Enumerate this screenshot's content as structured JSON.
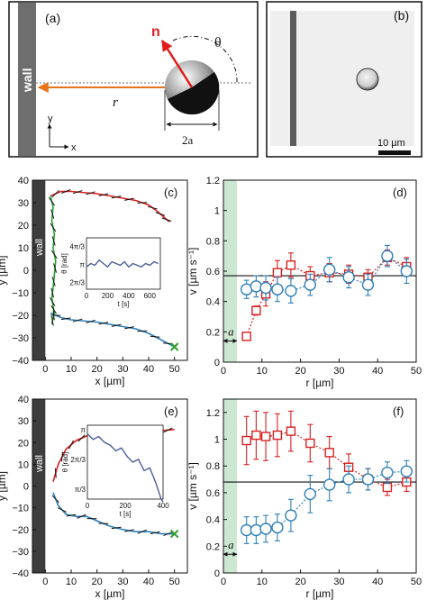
{
  "panel_a": {
    "label": "(a)",
    "wall_label": "wall",
    "n_label": "n",
    "theta_label": "θ",
    "r_label": "r",
    "two_a_label": "2a",
    "y_label": "y",
    "x_label": "x",
    "colors": {
      "arrow_r": "#e8741a",
      "arrow_n": "#e11b1b"
    }
  },
  "panel_b": {
    "label": "(b)",
    "scalebar_label": "10 µm"
  },
  "chart_data": [
    {
      "id": "c",
      "type": "line",
      "label": "(c)",
      "xlabel": "x [µm]",
      "ylabel": "y [µm]",
      "wall_label": "wall",
      "xlim": [
        -5,
        55
      ],
      "ylim": [
        -40,
        40
      ],
      "xticks": [
        "0",
        "10",
        "20",
        "30",
        "40",
        "50"
      ],
      "yticks": [
        "−40",
        "−30",
        "−20",
        "−10",
        "0",
        "10",
        "20",
        "30",
        "40"
      ],
      "series": [
        {
          "color": "#d62020",
          "x": [
            2,
            6,
            10,
            15,
            20,
            25,
            30,
            35,
            40,
            43,
            46,
            48
          ],
          "y": [
            33,
            35,
            35,
            34.5,
            34,
            33,
            32,
            31,
            29,
            26.5,
            23.5,
            21.5
          ]
        },
        {
          "color": "#2e7fb8",
          "x": [
            2,
            6,
            10,
            15,
            20,
            25,
            30,
            35,
            40,
            45,
            50
          ],
          "y": [
            -19,
            -21,
            -22,
            -22.5,
            -23,
            -24,
            -25,
            -26,
            -28,
            -31,
            -34
          ]
        },
        {
          "color": "#2aa02a",
          "x": [
            2,
            3,
            2.5,
            3.5,
            3,
            4,
            3.5,
            3,
            2.5,
            3,
            3.5,
            3,
            2.5
          ],
          "y": [
            33,
            28,
            22,
            16,
            10,
            4,
            -2,
            -8,
            -12,
            -16,
            -19,
            -21,
            -24
          ]
        }
      ],
      "end_marker": {
        "x": 50,
        "y": -34,
        "color": "#2aa02a"
      },
      "inset": {
        "xlabel": "t [s]",
        "ylabel": "θ [rad]",
        "xticks": [
          "0",
          "200",
          "400",
          "600"
        ],
        "yticks": [
          "2π/3",
          "π",
          "4π/3"
        ],
        "color": "#4a5f9a",
        "t": [
          0,
          40,
          80,
          120,
          160,
          200,
          240,
          280,
          320,
          360,
          400,
          440,
          480,
          520,
          560,
          600,
          640,
          680
        ],
        "theta": [
          3.0,
          3.2,
          3.1,
          3.4,
          3.2,
          3.0,
          3.3,
          3.2,
          3.1,
          3.3,
          3.0,
          3.2,
          3.1,
          3.0,
          3.2,
          3.1,
          3.3,
          3.2
        ]
      }
    },
    {
      "id": "d",
      "type": "scatter",
      "label": "(d)",
      "xlabel": "r [µm]",
      "ylabel": "v [µm s⁻¹]",
      "a_label": "a",
      "xlim": [
        0,
        50
      ],
      "ylim": [
        0,
        1.2
      ],
      "xticks": [
        "0",
        "10",
        "20",
        "30",
        "40",
        "50"
      ],
      "yticks": [
        "0",
        "0.2",
        "0.4",
        "0.6",
        "0.8",
        "1",
        "1.2"
      ],
      "hline": 0.57,
      "shaded_x": [
        0,
        3.5
      ],
      "series": [
        {
          "marker": "square",
          "color": "#d62020",
          "x": [
            6,
            8.5,
            11,
            14,
            17.5,
            22.5,
            27.5,
            32.5,
            37.5,
            42.5,
            47.5
          ],
          "y": [
            0.17,
            0.34,
            0.45,
            0.59,
            0.64,
            0.57,
            0.59,
            0.58,
            0.56,
            0.69,
            0.63
          ],
          "err": [
            0.02,
            0.03,
            0.08,
            0.08,
            0.08,
            0.06,
            0.06,
            0.06,
            0.05,
            0.05,
            0.06
          ]
        },
        {
          "marker": "circle",
          "color": "#2e7fb8",
          "x": [
            6,
            8.5,
            11,
            14,
            17.5,
            22.5,
            27.5,
            32.5,
            37.5,
            42.5,
            47.5
          ],
          "y": [
            0.48,
            0.5,
            0.49,
            0.48,
            0.47,
            0.51,
            0.61,
            0.56,
            0.51,
            0.7,
            0.6
          ],
          "err": [
            0.06,
            0.07,
            0.08,
            0.08,
            0.08,
            0.07,
            0.08,
            0.07,
            0.07,
            0.07,
            0.08
          ]
        }
      ]
    },
    {
      "id": "e",
      "type": "line",
      "label": "(e)",
      "xlabel": "x [µm]",
      "ylabel": "y [µm]",
      "wall_label": "wall",
      "xlim": [
        -5,
        55
      ],
      "ylim": [
        -40,
        40
      ],
      "xticks": [
        "0",
        "10",
        "20",
        "30",
        "40",
        "50"
      ],
      "yticks": [
        "−40",
        "−30",
        "−20",
        "−10",
        "0",
        "10",
        "20",
        "30",
        "40"
      ],
      "series": [
        {
          "color": "#d62020",
          "x": [
            3,
            5,
            8,
            12,
            16,
            20,
            25,
            30,
            35,
            40,
            45,
            50
          ],
          "y": [
            2,
            10,
            17,
            21,
            23,
            24,
            24.5,
            24.5,
            25,
            25.5,
            25.5,
            26
          ]
        },
        {
          "color": "#2e7fb8",
          "x": [
            3,
            5,
            8,
            12,
            16,
            20,
            25,
            30,
            35,
            40,
            45,
            50
          ],
          "y": [
            -3,
            -9,
            -13,
            -14,
            -14,
            -16,
            -18.5,
            -20,
            -21,
            -21,
            -22,
            -22
          ]
        }
      ],
      "end_marker": {
        "x": 50,
        "y": -22,
        "color": "#2aa02a"
      },
      "inset": {
        "xlabel": "t [s]",
        "ylabel": "θ [rad]",
        "xticks": [
          "0",
          "200",
          "400"
        ],
        "yticks": [
          "π/3",
          "2π/3",
          "π"
        ],
        "color": "#4a5f9a",
        "t": [
          0,
          30,
          60,
          90,
          120,
          150,
          180,
          210,
          240,
          270,
          300,
          330,
          360,
          390,
          400
        ],
        "theta": [
          3.0,
          2.8,
          2.9,
          2.7,
          2.6,
          2.4,
          2.5,
          2.2,
          2.0,
          2.1,
          1.7,
          1.8,
          1.3,
          0.7,
          0.6
        ]
      }
    },
    {
      "id": "f",
      "type": "scatter",
      "label": "(f)",
      "xlabel": "r [µm]",
      "ylabel": "v [µm s⁻¹]",
      "a_label": "a",
      "xlim": [
        0,
        50
      ],
      "ylim": [
        0,
        1.3
      ],
      "xticks": [
        "0",
        "10",
        "20",
        "30",
        "40",
        "50"
      ],
      "yticks": [
        "0",
        "0.2",
        "0.4",
        "0.6",
        "0.8",
        "1",
        "1.2"
      ],
      "hline": 0.68,
      "shaded_x": [
        0,
        3.5
      ],
      "series": [
        {
          "marker": "square",
          "color": "#d62020",
          "x": [
            6,
            8.5,
            11,
            14,
            17.5,
            22.5,
            27.5,
            32.5,
            37.5,
            42.5,
            47.5
          ],
          "y": [
            0.99,
            1.03,
            1.02,
            1.03,
            1.06,
            0.97,
            0.9,
            0.79,
            0.7,
            0.64,
            0.68
          ],
          "err": [
            0.18,
            0.18,
            0.18,
            0.16,
            0.15,
            0.14,
            0.12,
            0.1,
            0.08,
            0.06,
            0.07
          ]
        },
        {
          "marker": "circle",
          "color": "#2e7fb8",
          "x": [
            6,
            8.5,
            11,
            14,
            17.5,
            22.5,
            27.5,
            32.5,
            37.5,
            42.5,
            47.5
          ],
          "y": [
            0.32,
            0.32,
            0.33,
            0.34,
            0.43,
            0.59,
            0.66,
            0.7,
            0.7,
            0.75,
            0.76
          ],
          "err": [
            0.1,
            0.1,
            0.1,
            0.1,
            0.12,
            0.14,
            0.12,
            0.1,
            0.08,
            0.08,
            0.08
          ]
        }
      ]
    }
  ]
}
